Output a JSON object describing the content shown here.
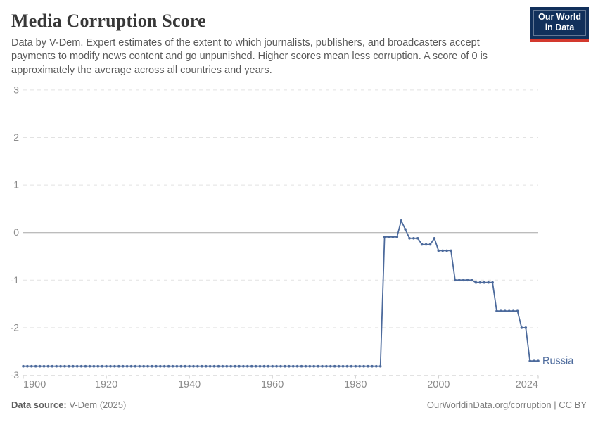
{
  "header": {
    "title": "Media Corruption Score",
    "subtitle": "Data by V-Dem. Expert estimates of the extent to which journalists, publishers, and broadcasters accept payments to modify news content and go unpunished. Higher scores mean less corruption. A score of 0 is approximately the average across all countries and years.",
    "logo": {
      "line1": "Our World",
      "line2": "in Data"
    }
  },
  "footer": {
    "source_label": "Data source:",
    "source_value": "V-Dem (2025)",
    "credit": "OurWorldinData.org/corruption | CC BY"
  },
  "colors": {
    "line": "#4c6a9c",
    "series_label": "#4c6a9c",
    "grid": "#e2e2e2",
    "zero_line": "#a5a5a5",
    "tick_mark": "#c9c9c9",
    "axis_text": "#8c8c8c",
    "logo_bg": "#11305b",
    "logo_red": "#d3392e"
  },
  "chart_data": {
    "type": "line",
    "title": "Media Corruption Score",
    "xlabel": "",
    "ylabel": "",
    "xlim": [
      1900,
      2024
    ],
    "ylim": [
      -3,
      3
    ],
    "x_ticks": [
      1900,
      1920,
      1940,
      1960,
      1980,
      2000,
      2024
    ],
    "y_ticks": [
      3,
      2,
      1,
      0,
      -1,
      -2,
      -3
    ],
    "grid": "horizontal dashed, solid line at 0",
    "legend_position": "end-of-line label",
    "series": [
      {
        "name": "Russia",
        "points": [
          [
            1900,
            -2.81
          ],
          [
            1901,
            -2.81
          ],
          [
            1902,
            -2.81
          ],
          [
            1903,
            -2.81
          ],
          [
            1904,
            -2.81
          ],
          [
            1905,
            -2.81
          ],
          [
            1906,
            -2.81
          ],
          [
            1907,
            -2.81
          ],
          [
            1908,
            -2.81
          ],
          [
            1909,
            -2.81
          ],
          [
            1910,
            -2.81
          ],
          [
            1911,
            -2.81
          ],
          [
            1912,
            -2.81
          ],
          [
            1913,
            -2.81
          ],
          [
            1914,
            -2.81
          ],
          [
            1915,
            -2.81
          ],
          [
            1916,
            -2.81
          ],
          [
            1917,
            -2.81
          ],
          [
            1918,
            -2.81
          ],
          [
            1919,
            -2.81
          ],
          [
            1920,
            -2.81
          ],
          [
            1921,
            -2.81
          ],
          [
            1922,
            -2.81
          ],
          [
            1923,
            -2.81
          ],
          [
            1924,
            -2.81
          ],
          [
            1925,
            -2.81
          ],
          [
            1926,
            -2.81
          ],
          [
            1927,
            -2.81
          ],
          [
            1928,
            -2.81
          ],
          [
            1929,
            -2.81
          ],
          [
            1930,
            -2.81
          ],
          [
            1931,
            -2.81
          ],
          [
            1932,
            -2.81
          ],
          [
            1933,
            -2.81
          ],
          [
            1934,
            -2.81
          ],
          [
            1935,
            -2.81
          ],
          [
            1936,
            -2.81
          ],
          [
            1937,
            -2.81
          ],
          [
            1938,
            -2.81
          ],
          [
            1939,
            -2.81
          ],
          [
            1940,
            -2.81
          ],
          [
            1941,
            -2.81
          ],
          [
            1942,
            -2.81
          ],
          [
            1943,
            -2.81
          ],
          [
            1944,
            -2.81
          ],
          [
            1945,
            -2.81
          ],
          [
            1946,
            -2.81
          ],
          [
            1947,
            -2.81
          ],
          [
            1948,
            -2.81
          ],
          [
            1949,
            -2.81
          ],
          [
            1950,
            -2.81
          ],
          [
            1951,
            -2.81
          ],
          [
            1952,
            -2.81
          ],
          [
            1953,
            -2.81
          ],
          [
            1954,
            -2.81
          ],
          [
            1955,
            -2.81
          ],
          [
            1956,
            -2.81
          ],
          [
            1957,
            -2.81
          ],
          [
            1958,
            -2.81
          ],
          [
            1959,
            -2.81
          ],
          [
            1960,
            -2.81
          ],
          [
            1961,
            -2.81
          ],
          [
            1962,
            -2.81
          ],
          [
            1963,
            -2.81
          ],
          [
            1964,
            -2.81
          ],
          [
            1965,
            -2.81
          ],
          [
            1966,
            -2.81
          ],
          [
            1967,
            -2.81
          ],
          [
            1968,
            -2.81
          ],
          [
            1969,
            -2.81
          ],
          [
            1970,
            -2.81
          ],
          [
            1971,
            -2.81
          ],
          [
            1972,
            -2.81
          ],
          [
            1973,
            -2.81
          ],
          [
            1974,
            -2.81
          ],
          [
            1975,
            -2.81
          ],
          [
            1976,
            -2.81
          ],
          [
            1977,
            -2.81
          ],
          [
            1978,
            -2.81
          ],
          [
            1979,
            -2.81
          ],
          [
            1980,
            -2.81
          ],
          [
            1981,
            -2.81
          ],
          [
            1982,
            -2.81
          ],
          [
            1983,
            -2.81
          ],
          [
            1984,
            -2.81
          ],
          [
            1985,
            -2.81
          ],
          [
            1986,
            -2.81
          ],
          [
            1987,
            -0.09
          ],
          [
            1988,
            -0.09
          ],
          [
            1989,
            -0.09
          ],
          [
            1990,
            -0.09
          ],
          [
            1991,
            0.25
          ],
          [
            1992,
            0.07
          ],
          [
            1993,
            -0.12
          ],
          [
            1994,
            -0.12
          ],
          [
            1995,
            -0.12
          ],
          [
            1996,
            -0.25
          ],
          [
            1997,
            -0.25
          ],
          [
            1998,
            -0.25
          ],
          [
            1999,
            -0.12
          ],
          [
            2000,
            -0.38
          ],
          [
            2001,
            -0.38
          ],
          [
            2002,
            -0.38
          ],
          [
            2003,
            -0.38
          ],
          [
            2004,
            -1.0
          ],
          [
            2005,
            -1.0
          ],
          [
            2006,
            -1.0
          ],
          [
            2007,
            -1.0
          ],
          [
            2008,
            -1.0
          ],
          [
            2009,
            -1.05
          ],
          [
            2010,
            -1.05
          ],
          [
            2011,
            -1.05
          ],
          [
            2012,
            -1.05
          ],
          [
            2013,
            -1.05
          ],
          [
            2014,
            -1.65
          ],
          [
            2015,
            -1.65
          ],
          [
            2016,
            -1.65
          ],
          [
            2017,
            -1.65
          ],
          [
            2018,
            -1.65
          ],
          [
            2019,
            -1.65
          ],
          [
            2020,
            -2.0
          ],
          [
            2021,
            -2.0
          ],
          [
            2022,
            -2.7
          ],
          [
            2023,
            -2.7
          ],
          [
            2024,
            -2.7
          ]
        ]
      }
    ]
  }
}
